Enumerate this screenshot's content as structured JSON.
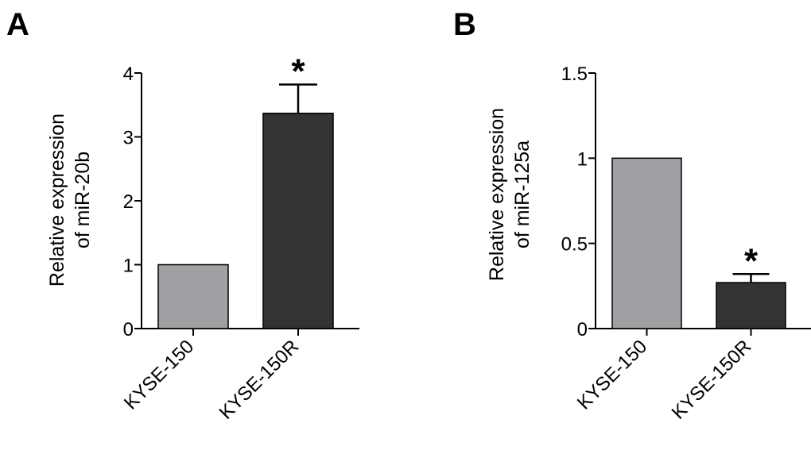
{
  "chart_data": [
    {
      "type": "bar",
      "panel_label": "A",
      "ylabel_lines": [
        "Relative  expression",
        "of  miR-20b"
      ],
      "categories": [
        "KYSE-150",
        "KYSE-150R"
      ],
      "values": [
        1.0,
        3.37
      ],
      "errors": [
        0,
        0.45
      ],
      "colors": [
        "#a0a0a4",
        "#333333"
      ],
      "significance": [
        "",
        "*"
      ],
      "ylim": [
        0,
        4
      ],
      "yticks": [
        0,
        1,
        2,
        3,
        4
      ],
      "ytick_labels": [
        "0",
        "1",
        "2",
        "3",
        "4"
      ]
    },
    {
      "type": "bar",
      "panel_label": "B",
      "ylabel_lines": [
        "Relative  expression",
        "of  miR-125a"
      ],
      "categories": [
        "KYSE-150",
        "KYSE-150R"
      ],
      "values": [
        1.0,
        0.27
      ],
      "errors": [
        0,
        0.05
      ],
      "colors": [
        "#a0a0a4",
        "#333333"
      ],
      "significance": [
        "",
        "*"
      ],
      "ylim": [
        0,
        1.5
      ],
      "yticks": [
        0,
        0.5,
        1.0,
        1.5
      ],
      "ytick_labels": [
        "0",
        "0.5",
        "1",
        "1.5"
      ]
    }
  ]
}
